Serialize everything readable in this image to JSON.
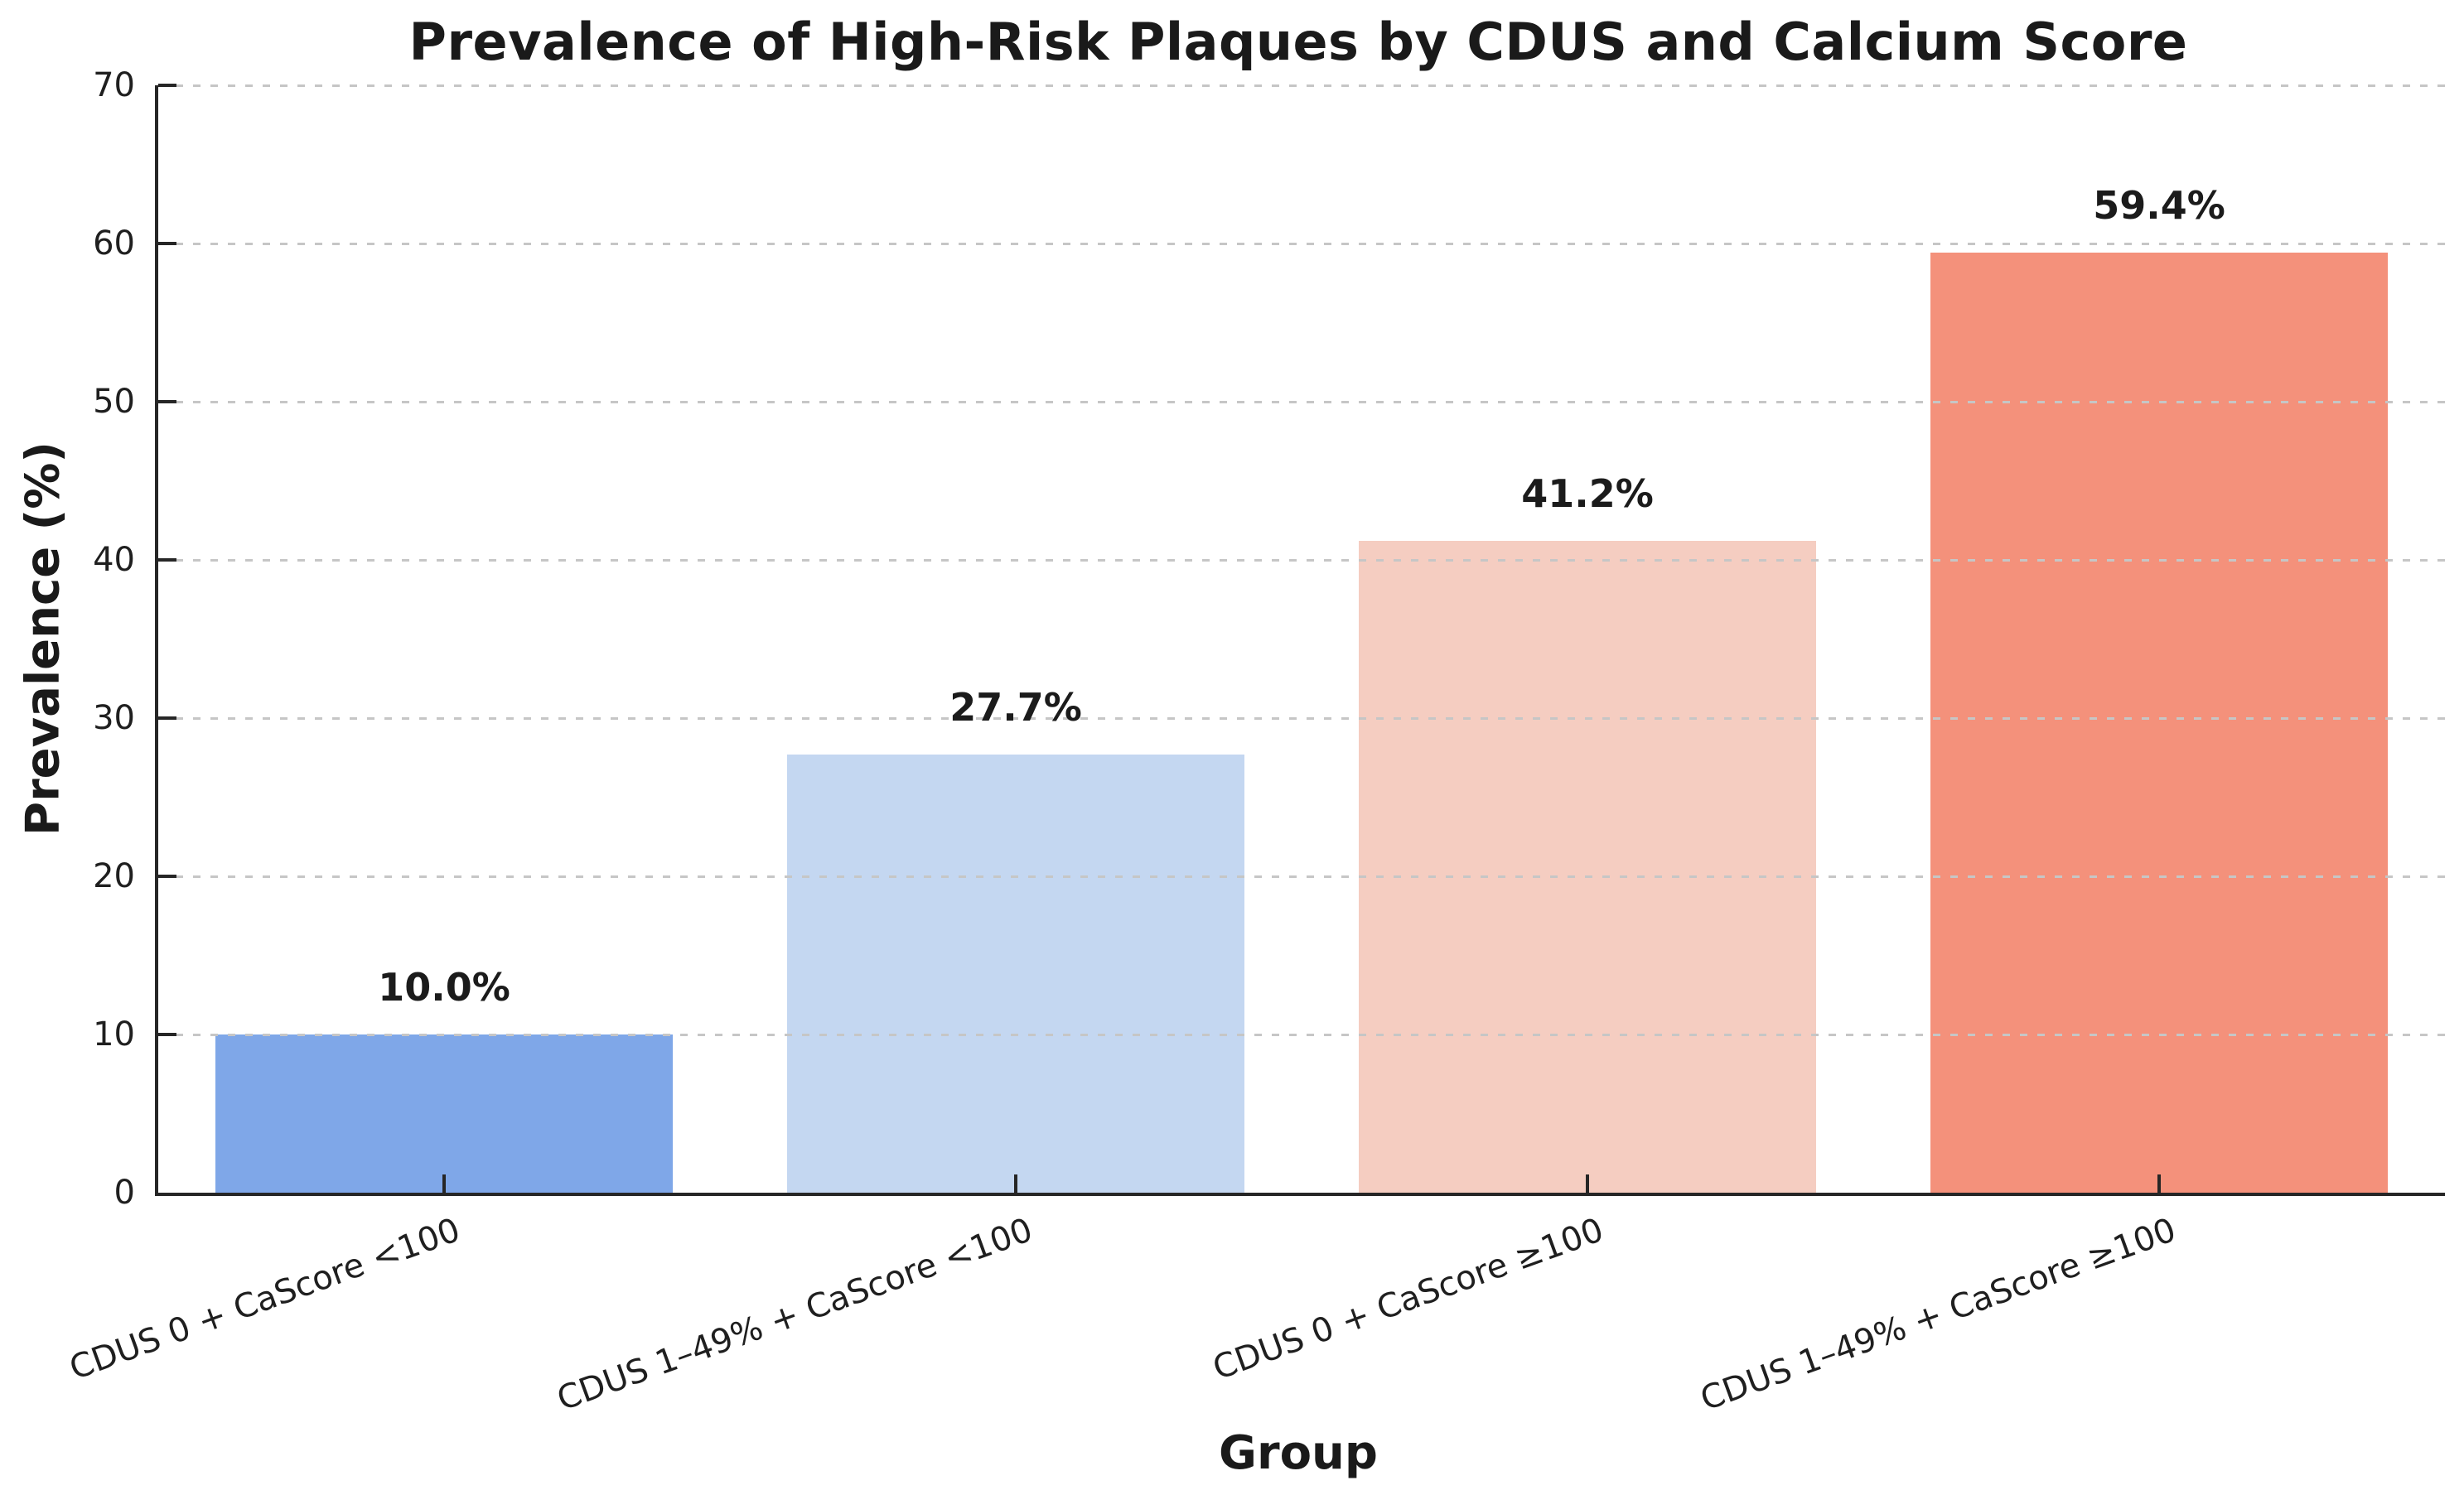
{
  "chart_data": {
    "type": "bar",
    "title": "Prevalence of High-Risk Plaques by CDUS and Calcium Score",
    "xlabel": "Group",
    "ylabel": "Prevalence (%)",
    "categories": [
      "CDUS 0 + CaScore <100",
      "CDUS 1–49% + CaScore <100",
      "CDUS 0 + CaScore ≥100",
      "CDUS 1–49% + CaScore ≥100"
    ],
    "values": [
      10.0,
      27.7,
      41.2,
      59.4
    ],
    "bar_value_labels": [
      "10.0%",
      "27.7%",
      "41.2%",
      "59.4%"
    ],
    "bar_colors": [
      "#7fa7e8",
      "#c4d7f1",
      "#f5cdc1",
      "#f4917b"
    ],
    "ylim": [
      0,
      70
    ],
    "yticks": [
      0,
      10,
      20,
      30,
      40,
      50,
      60,
      70
    ],
    "grid": {
      "axis": "y",
      "style": "dashed",
      "color": "#c6c6c6"
    },
    "x_tick_label_rotation_deg": 20,
    "bar_width_fraction": 0.8,
    "legend": "none",
    "colors": {
      "axis_spine": "#262626",
      "text": "#1b1b1b",
      "background": "#ffffff"
    }
  }
}
